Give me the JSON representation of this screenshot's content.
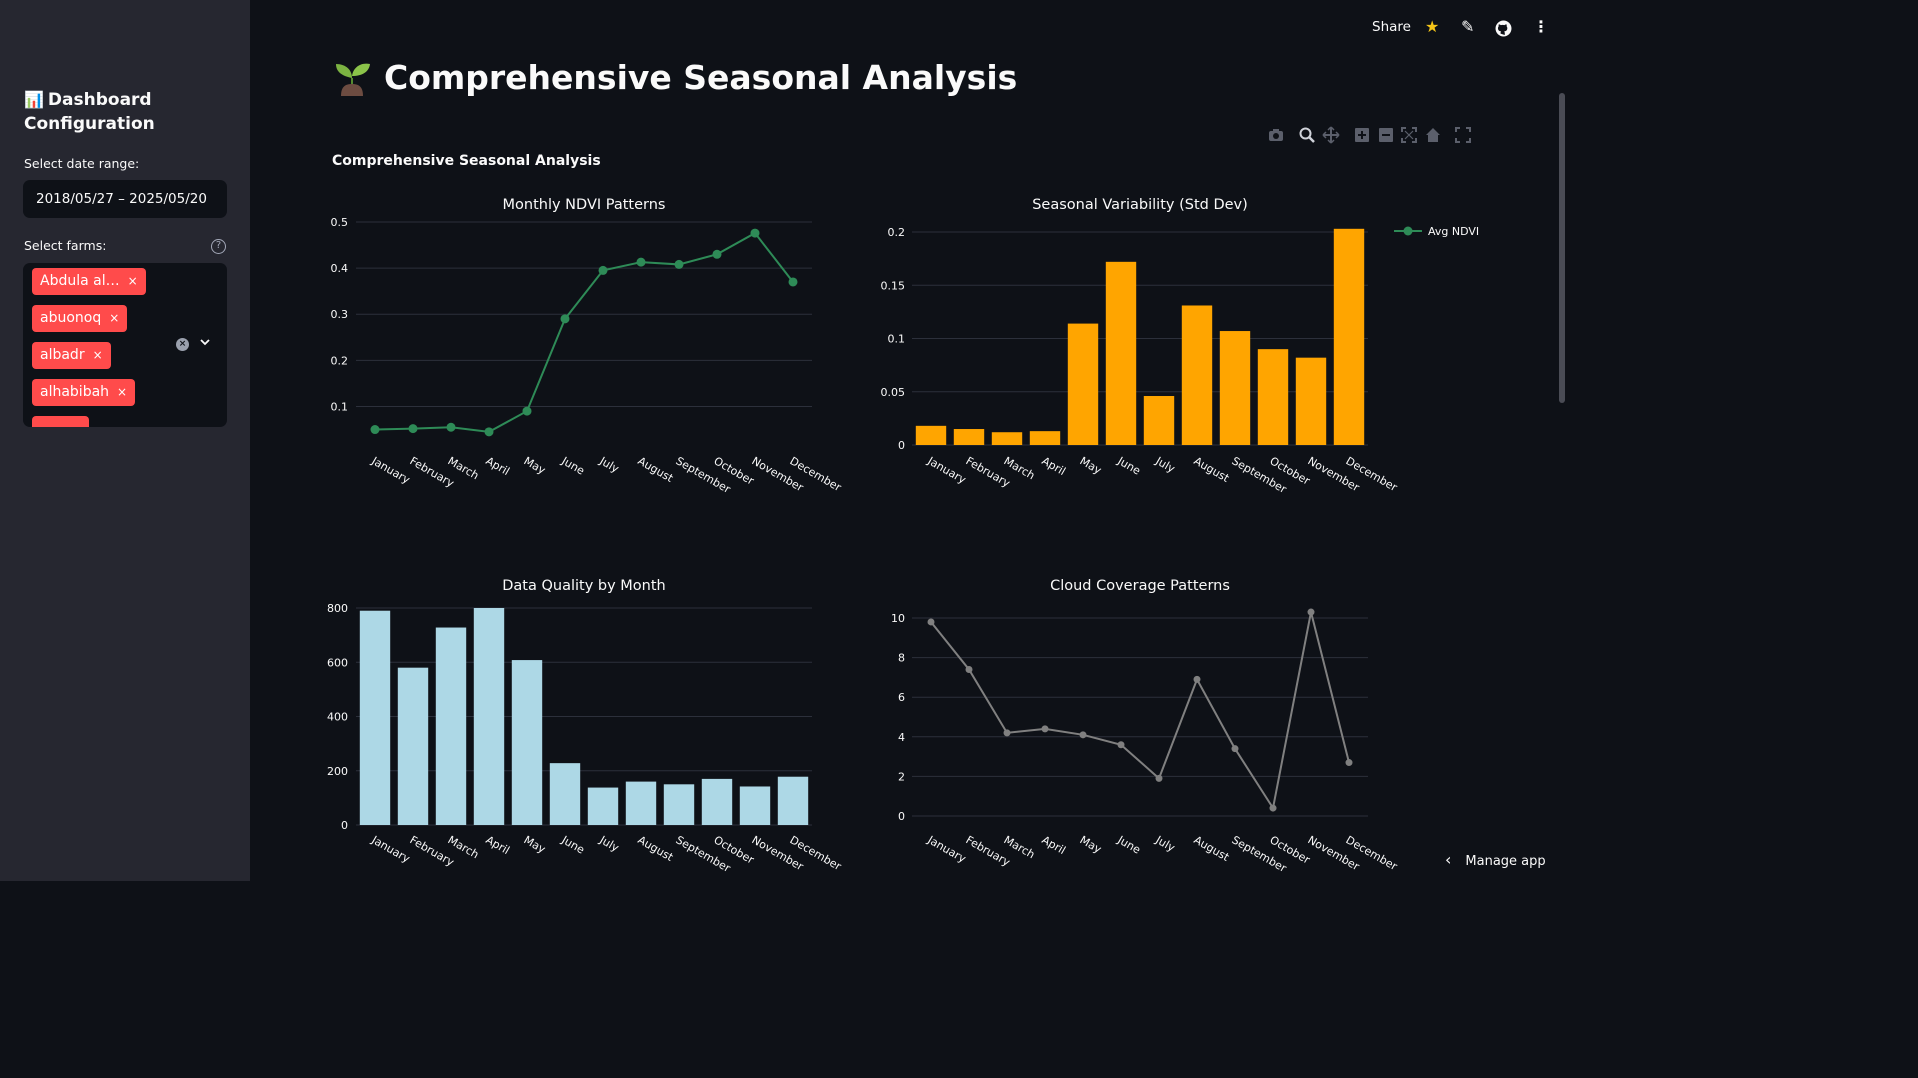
{
  "sidebar": {
    "title_icon": "📊",
    "title": "Dashboard Configuration",
    "date_label": "Select date range:",
    "date_value": "2018/05/27 – 2025/05/20",
    "farms_label": "Select farms:",
    "help_icon": "?",
    "farms": [
      "Abdula al…",
      "abuonoq",
      "albadr",
      "alhabibah"
    ],
    "chip_close": "×"
  },
  "header": {
    "share_label": "Share",
    "star_icon": "★",
    "edit_icon": "✎",
    "github_icon": "github-icon",
    "menu_icon": "⋮"
  },
  "main": {
    "title": "Comprehensive Seasonal Analysis",
    "subheading": "Comprehensive Seasonal Analysis",
    "manage_app": "Manage app",
    "manage_chevron": "‹"
  },
  "colors": {
    "background": "#0e1117",
    "sidebar": "#262730",
    "ndvi_line": "#2e8b57",
    "std_bar": "#ffa500",
    "quality_bar": "#add8e6",
    "cloud_line": "#808080",
    "chip": "#ff4b4b"
  },
  "chart_data": [
    {
      "type": "line",
      "title": "Monthly NDVI Patterns",
      "categories": [
        "January",
        "February",
        "March",
        "April",
        "May",
        "June",
        "July",
        "August",
        "September",
        "October",
        "November",
        "December"
      ],
      "series": [
        {
          "name": "",
          "values": [
            0.05,
            0.052,
            0.055,
            0.045,
            0.09,
            0.29,
            0.395,
            0.413,
            0.408,
            0.43,
            0.476,
            0.37
          ]
        }
      ],
      "yticks": [
        0.1,
        0.2,
        0.3,
        0.4,
        0.5
      ],
      "ylim": [
        0.01,
        0.5
      ]
    },
    {
      "type": "bar",
      "title": "Seasonal Variability (Std Dev)",
      "categories": [
        "January",
        "February",
        "March",
        "April",
        "May",
        "June",
        "July",
        "August",
        "September",
        "October",
        "November",
        "December"
      ],
      "values": [
        0.018,
        0.015,
        0.012,
        0.013,
        0.114,
        0.172,
        0.046,
        0.131,
        0.107,
        0.09,
        0.082,
        0.203
      ],
      "yticks": [
        0,
        0.05,
        0.1,
        0.15,
        0.2
      ],
      "ylim": [
        0,
        0.2
      ],
      "legend": {
        "label": "Avg NDVI",
        "placement": "top-right"
      }
    },
    {
      "type": "bar",
      "title": "Data Quality by Month",
      "categories": [
        "January",
        "February",
        "March",
        "April",
        "May",
        "June",
        "July",
        "August",
        "September",
        "October",
        "November",
        "December"
      ],
      "values": [
        790,
        580,
        728,
        800,
        608,
        228,
        138,
        160,
        150,
        170,
        142,
        178
      ],
      "yticks": [
        0,
        200,
        400,
        600,
        800
      ],
      "ylim": [
        0,
        800
      ]
    },
    {
      "type": "line",
      "title": "Cloud Coverage Patterns",
      "categories": [
        "January",
        "February",
        "March",
        "April",
        "May",
        "June",
        "July",
        "August",
        "September",
        "October",
        "November",
        "December"
      ],
      "series": [
        {
          "name": "",
          "values": [
            9.8,
            7.4,
            4.2,
            4.4,
            4.1,
            3.6,
            1.9,
            6.9,
            3.4,
            0.4,
            10.3,
            2.7
          ]
        }
      ],
      "yticks": [
        0,
        2,
        4,
        6,
        8,
        10
      ],
      "ylim": [
        0,
        10
      ]
    }
  ]
}
